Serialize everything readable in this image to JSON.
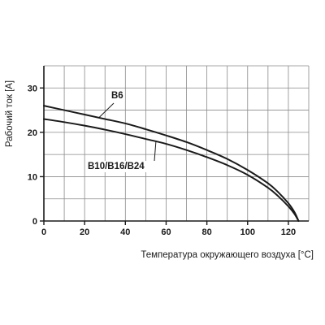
{
  "chart_data": {
    "type": "line",
    "title": "",
    "xlabel": "Температура окружающего воздуха [°C]",
    "ylabel": "Рабочий ток [A]",
    "xlim": [
      0,
      130
    ],
    "ylim": [
      0,
      35
    ],
    "x_ticks": [
      0,
      20,
      40,
      60,
      80,
      100,
      120
    ],
    "y_ticks": [
      0,
      10,
      20,
      30
    ],
    "x_grid_step": 10,
    "y_grid_step": 5,
    "grid": true,
    "colors": {
      "grid": "#8a8a8a",
      "axis": "#1a1a1a",
      "line": "#1a1a1a"
    },
    "series": [
      {
        "name": "B6",
        "x": [
          0,
          10,
          20,
          30,
          40,
          50,
          60,
          70,
          80,
          90,
          100,
          110,
          115,
          120,
          123,
          125
        ],
        "y": [
          26,
          25,
          24,
          23,
          22,
          20.7,
          19.3,
          17.8,
          16,
          14,
          11.5,
          8.5,
          6.5,
          4,
          2,
          0
        ]
      },
      {
        "name": "B10/B16/B24",
        "x": [
          0,
          10,
          20,
          30,
          40,
          50,
          60,
          70,
          80,
          90,
          100,
          110,
          115,
          120,
          123,
          125
        ],
        "y": [
          23,
          22.3,
          21.5,
          20.6,
          19.6,
          18.5,
          17.4,
          16,
          14.4,
          12.6,
          10.4,
          7.5,
          5.6,
          3.3,
          1.6,
          0
        ]
      }
    ]
  }
}
